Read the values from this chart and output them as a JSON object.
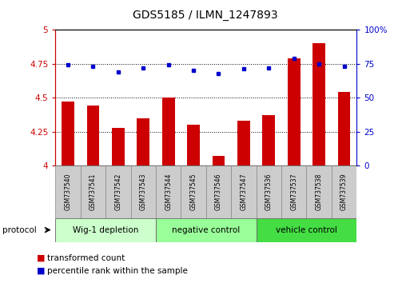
{
  "title": "GDS5185 / ILMN_1247893",
  "samples": [
    "GSM737540",
    "GSM737541",
    "GSM737542",
    "GSM737543",
    "GSM737544",
    "GSM737545",
    "GSM737546",
    "GSM737547",
    "GSM737536",
    "GSM737537",
    "GSM737538",
    "GSM737539"
  ],
  "red_values": [
    4.47,
    4.44,
    4.28,
    4.35,
    4.5,
    4.3,
    4.07,
    4.33,
    4.37,
    4.79,
    4.9,
    4.54
  ],
  "blue_values": [
    74,
    73,
    69,
    72,
    74,
    70,
    68,
    71,
    72,
    79,
    75,
    73
  ],
  "groups": [
    {
      "label": "Wig-1 depletion",
      "start": 0,
      "end": 4,
      "color": "#ccffcc"
    },
    {
      "label": "negative control",
      "start": 4,
      "end": 8,
      "color": "#99ff99"
    },
    {
      "label": "vehicle control",
      "start": 8,
      "end": 12,
      "color": "#44dd44"
    }
  ],
  "ylim_left": [
    4.0,
    5.0
  ],
  "ylim_right": [
    0,
    100
  ],
  "yticks_left": [
    4.0,
    4.25,
    4.5,
    4.75,
    5.0
  ],
  "yticks_right": [
    0,
    25,
    50,
    75,
    100
  ],
  "ytick_labels_left": [
    "4",
    "4.25",
    "4.5",
    "4.75",
    "5"
  ],
  "ytick_labels_right": [
    "0",
    "25",
    "50",
    "75",
    "100%"
  ],
  "bar_color": "#cc0000",
  "dot_color": "#0000cc",
  "grid_color": "#000000",
  "label_fontsize": 7.5,
  "title_fontsize": 10,
  "sample_box_color": "#cccccc",
  "protocol_label": "protocol"
}
